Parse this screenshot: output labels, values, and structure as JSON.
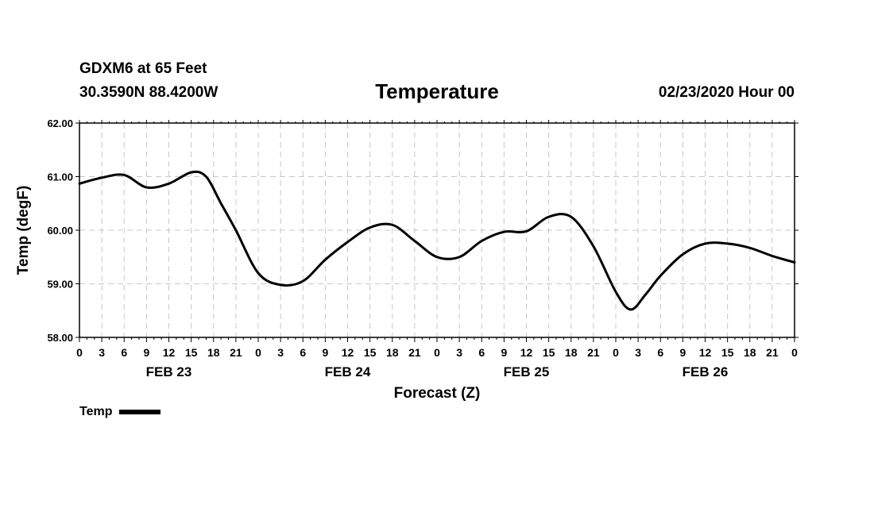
{
  "header": {
    "station": "GDXM6 at 65 Feet",
    "coords": "30.3590N 88.4200W",
    "title": "Temperature",
    "datetime": "02/23/2020 Hour 00"
  },
  "chart_data": {
    "type": "line",
    "title": "Temperature",
    "xlabel": "Forecast (Z)",
    "ylabel": "Temp (degF)",
    "ylim": [
      58.0,
      62.0
    ],
    "yticks": [
      "58.00",
      "59.00",
      "60.00",
      "61.00",
      "62.00"
    ],
    "xlim_hours": [
      0,
      96
    ],
    "xtick_labels": [
      "0",
      "3",
      "6",
      "9",
      "12",
      "15",
      "18",
      "21",
      "0",
      "3",
      "6",
      "9",
      "12",
      "15",
      "18",
      "21",
      "0",
      "3",
      "6",
      "9",
      "12",
      "15",
      "18",
      "21",
      "0",
      "3",
      "6",
      "9",
      "12",
      "15",
      "18",
      "21",
      "0"
    ],
    "day_labels": [
      {
        "label": "FEB 23",
        "hour": 12
      },
      {
        "label": "FEB 24",
        "hour": 36
      },
      {
        "label": "FEB 25",
        "hour": 60
      },
      {
        "label": "FEB 26",
        "hour": 84
      }
    ],
    "grid": true,
    "legend_position": "bottom-left",
    "series": [
      {
        "name": "Temp",
        "color": "#000000",
        "points": [
          [
            0,
            60.87
          ],
          [
            3,
            60.98
          ],
          [
            6,
            61.03
          ],
          [
            9,
            60.8
          ],
          [
            12,
            60.87
          ],
          [
            15,
            61.08
          ],
          [
            17,
            61.0
          ],
          [
            19,
            60.5
          ],
          [
            21,
            60.0
          ],
          [
            24,
            59.2
          ],
          [
            27,
            58.98
          ],
          [
            30,
            59.05
          ],
          [
            33,
            59.45
          ],
          [
            36,
            59.78
          ],
          [
            39,
            60.05
          ],
          [
            42,
            60.1
          ],
          [
            45,
            59.8
          ],
          [
            48,
            59.5
          ],
          [
            51,
            59.5
          ],
          [
            54,
            59.8
          ],
          [
            57,
            59.97
          ],
          [
            60,
            59.98
          ],
          [
            63,
            60.25
          ],
          [
            66,
            60.25
          ],
          [
            69,
            59.7
          ],
          [
            72,
            58.85
          ],
          [
            74,
            58.52
          ],
          [
            76,
            58.8
          ],
          [
            78,
            59.15
          ],
          [
            81,
            59.55
          ],
          [
            84,
            59.75
          ],
          [
            87,
            59.75
          ],
          [
            90,
            59.67
          ],
          [
            93,
            59.52
          ],
          [
            96,
            59.4
          ]
        ]
      }
    ]
  },
  "legend": {
    "label": "Temp"
  }
}
